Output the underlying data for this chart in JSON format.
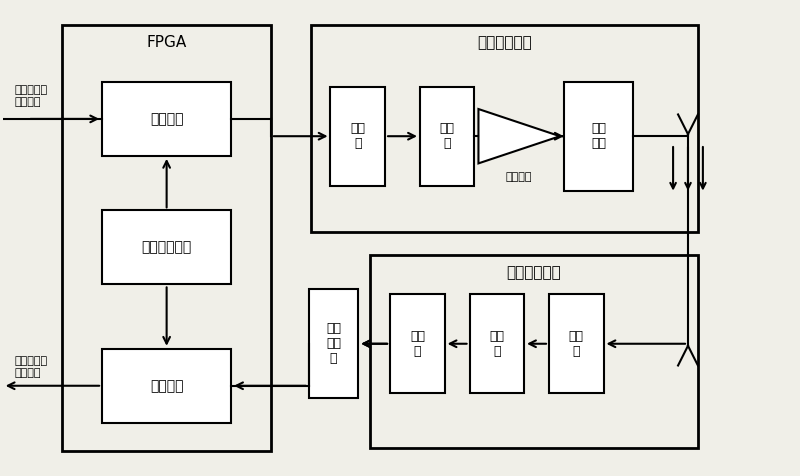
{
  "bg_color": "#f0efe8",
  "box_facecolor": "#ffffff",
  "box_edgecolor": "#000000",
  "fig_w": 8.0,
  "fig_h": 4.76,
  "fpga_label": "FPGA",
  "rf_tx_label": "射频发送单元",
  "rf_rx_label": "射频接收单元",
  "tx_module_label": "发送模块",
  "clk_module_label": "时钟产生模块",
  "rx_module_label": "接收模块",
  "filter_tx_label": "滤波\n器",
  "mixer_tx_label": "混频\n器",
  "selfreq_label": "选频\n回路",
  "hardlimit_label": "硬限\n幅电\n路",
  "filter_rx_label": "滤波\n器",
  "mixer_rx_label": "混频\n器",
  "lna_label": "低噪\n放",
  "class_c_label": "丙类功放",
  "input_label": "二进制比特\n输入信号",
  "output_label": "二进制比特\n输出信号"
}
